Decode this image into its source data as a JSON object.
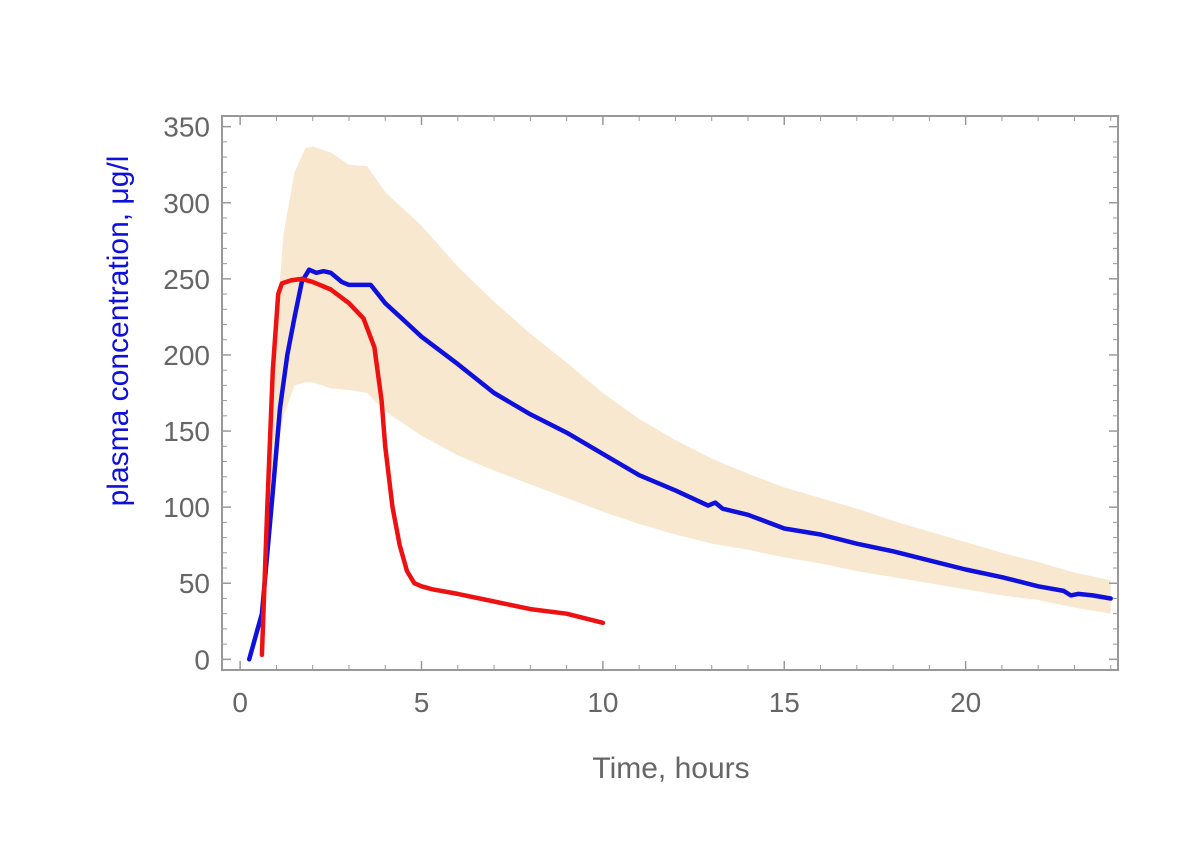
{
  "chart_data": {
    "type": "line",
    "xlabel": "Time, hours",
    "ylabel": "plasma concentration, μg/l",
    "xlim": [
      -0.5,
      24.2
    ],
    "ylim": [
      -7,
      357
    ],
    "xticks": [
      0,
      5,
      10,
      15,
      20
    ],
    "yticks": [
      0,
      50,
      100,
      150,
      200,
      250,
      300,
      350
    ],
    "grid": false,
    "legend": "none",
    "colors": {
      "series_blue": "#1010dd",
      "series_red": "#ee1111",
      "band": "#f8e8d0",
      "axis": "#999999",
      "tick_text": "#666666",
      "xlabel_text": "#666666",
      "ylabel_text": "#1010dd"
    },
    "band": {
      "x": [
        0.8,
        1.0,
        1.2,
        1.5,
        1.8,
        2.0,
        2.5,
        3.0,
        3.5,
        4.0,
        5.0,
        6.0,
        7.0,
        8.0,
        9.0,
        10.0,
        11.0,
        12.0,
        13.0,
        14.0,
        15.0,
        16.0,
        17.0,
        18.0,
        19.0,
        20.0,
        21.0,
        22.0,
        23.0,
        24.0
      ],
      "upper": [
        140,
        220,
        280,
        320,
        336,
        337,
        333,
        325,
        324,
        307,
        285,
        258,
        235,
        214,
        195,
        175,
        158,
        144,
        132,
        122,
        113,
        106,
        99,
        91,
        84,
        77,
        70,
        64,
        57,
        52
      ],
      "lower": [
        110,
        135,
        160,
        180,
        182,
        182,
        178,
        177,
        175,
        163,
        147,
        134,
        124,
        115,
        106,
        97,
        89,
        82,
        76,
        72,
        67,
        63,
        58,
        54,
        50,
        46,
        42,
        39,
        34,
        30
      ]
    },
    "series": [
      {
        "x": [
          0.25,
          0.6,
          0.9,
          1.1,
          1.3,
          1.5,
          1.7,
          1.9,
          2.1,
          2.3,
          2.5,
          2.8,
          3.0,
          3.2,
          3.6,
          4.0,
          4.5,
          5.0,
          6.0,
          7.0,
          8.0,
          9.0,
          10.0,
          11.0,
          12.0,
          12.9,
          13.1,
          13.3,
          14.0,
          15.0,
          16.0,
          17.0,
          18.0,
          19.0,
          20.0,
          21.0,
          22.0,
          22.7,
          22.9,
          23.1,
          23.5,
          24.0
        ],
        "y": [
          0,
          30,
          110,
          165,
          200,
          225,
          248,
          256,
          254,
          255,
          254,
          248,
          246,
          246,
          246,
          234,
          223,
          212,
          194,
          175,
          161,
          149,
          135,
          121,
          111,
          101,
          103,
          99,
          95,
          86,
          82,
          76,
          71,
          65,
          59,
          54,
          48,
          45,
          42,
          43,
          42,
          40
        ]
      },
      {
        "x": [
          0.6,
          0.75,
          0.9,
          1.05,
          1.15,
          1.4,
          1.7,
          2.0,
          2.5,
          3.0,
          3.4,
          3.7,
          3.9,
          4.0,
          4.2,
          4.4,
          4.6,
          4.8,
          5.0,
          5.3,
          6.0,
          7.0,
          8.0,
          9.0,
          10.0
        ],
        "y": [
          3,
          100,
          190,
          240,
          247,
          249,
          250,
          248,
          243,
          234,
          224,
          205,
          170,
          140,
          100,
          75,
          58,
          50,
          48,
          46,
          43,
          38,
          33,
          30,
          24
        ]
      }
    ]
  }
}
